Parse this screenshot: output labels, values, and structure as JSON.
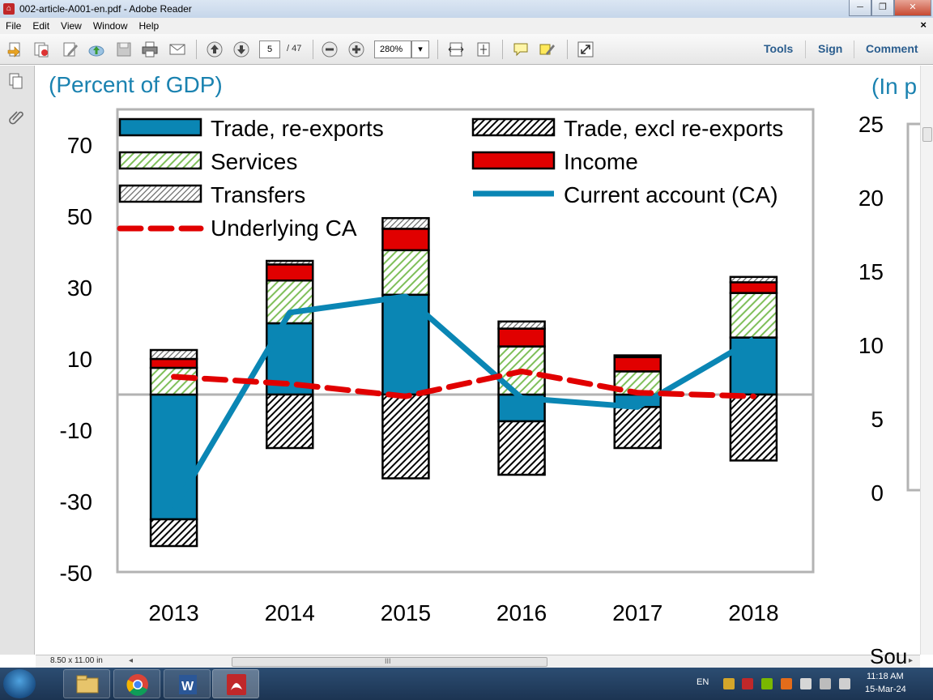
{
  "window": {
    "title": "002-article-A001-en.pdf - Adobe Reader",
    "minimize_label": "─",
    "restore_label": "❐",
    "close_label": "✕"
  },
  "menu": {
    "items": [
      "File",
      "Edit",
      "View",
      "Window",
      "Help"
    ],
    "doc_close": "×"
  },
  "toolbar": {
    "current_page": "5",
    "page_total": "/ 47",
    "zoom": "280%",
    "tools_label": "Tools",
    "sign_label": "Sign",
    "comment_label": "Comment"
  },
  "statusbar": {
    "page_size": "8.50 x 11.00 in",
    "scroll_left": "◂",
    "scroll_right": "▸",
    "grip": "III",
    "source_fragment": "Sou"
  },
  "taskbar": {
    "language": "EN",
    "time": "11:18 AM",
    "date": "15-Mar-24"
  },
  "colors": {
    "trade_reexports": "#0a86b4",
    "income": "#e10000",
    "current_account": "#0a86b4",
    "underlying_ca": "#e10000",
    "services_hatch": "#7fbf5a",
    "heading": "#1a82b0"
  },
  "page": {
    "heading_left": "(Percent of GDP)",
    "heading_right": "(In p"
  },
  "chart_data": [
    {
      "type": "bar",
      "stacked": true,
      "title": "",
      "subtitle": "(Percent of GDP)",
      "categories": [
        "2013",
        "2014",
        "2015",
        "2016",
        "2017",
        "2018"
      ],
      "ylim": [
        -50,
        75
      ],
      "yticks": [
        70,
        50,
        30,
        10,
        -10,
        -30,
        -50
      ],
      "grid": false,
      "legend_position": "top",
      "series": [
        {
          "name": "Trade, re-exports",
          "kind": "bar",
          "values": [
            -35,
            20,
            28,
            -7.5,
            -3.5,
            16
          ]
        },
        {
          "name": "Trade, excl re-exports",
          "kind": "bar",
          "values": [
            -7.5,
            -15,
            -23.5,
            -15,
            -11.5,
            -18.5
          ]
        },
        {
          "name": "Services",
          "kind": "bar",
          "values": [
            7.5,
            12,
            12.5,
            13.5,
            6.5,
            12.5
          ]
        },
        {
          "name": "Income",
          "kind": "bar",
          "values": [
            2.5,
            4.5,
            6,
            5,
            4,
            3
          ]
        },
        {
          "name": "Transfers",
          "kind": "bar",
          "values": [
            2.5,
            1,
            3,
            2,
            0.5,
            1.5
          ]
        },
        {
          "name": "Current account (CA)",
          "kind": "line",
          "values": [
            -32,
            23,
            27.5,
            -1,
            -3.5,
            15.5
          ]
        },
        {
          "name": "Underlying CA",
          "kind": "dashed-line",
          "values": [
            5,
            3,
            -0.5,
            6.5,
            0.5,
            -0.5
          ]
        }
      ]
    },
    {
      "type": "line",
      "subtitle": "(In p",
      "ylim": [
        0,
        25
      ],
      "yticks": [
        25,
        20,
        15,
        10,
        5,
        0
      ]
    }
  ]
}
